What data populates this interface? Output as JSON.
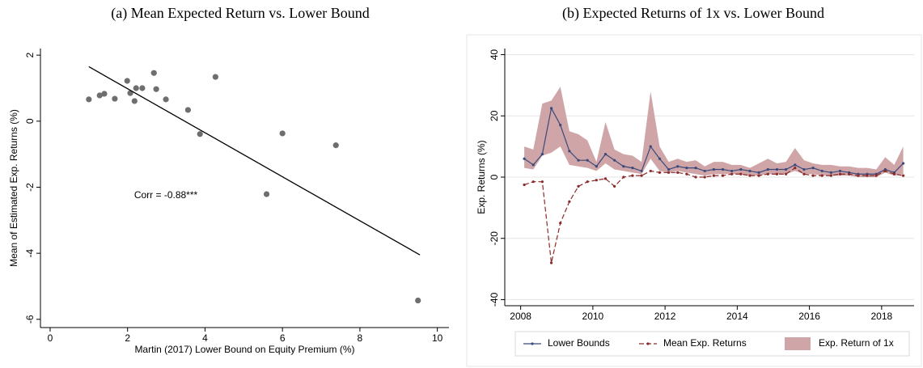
{
  "chart_data": [
    {
      "type": "scatter",
      "title": "(a) Mean Expected Return vs. Lower Bound",
      "x_label": "Martin (2017) Lower Bound on Equity Premium (%)",
      "y_label": "Mean of Estimated Exp. Returns (%)",
      "annotation": "Corr = -0.88***",
      "color": "#6e6e6e",
      "x": [
        1.0,
        1.28,
        1.4,
        1.67,
        1.99,
        2.07,
        2.18,
        2.22,
        2.38,
        2.68,
        2.74,
        2.99,
        3.56,
        3.87,
        4.27,
        5.59,
        6.0,
        7.38,
        9.5
      ],
      "y": [
        0.66,
        0.78,
        0.83,
        0.68,
        1.22,
        0.85,
        0.61,
        1.0,
        1.0,
        1.46,
        0.97,
        0.66,
        0.34,
        -0.39,
        1.34,
        -2.21,
        -0.37,
        -0.73,
        -5.43
      ],
      "fit_line": {
        "x": [
          1.0,
          9.55
        ],
        "y": [
          1.65,
          -4.05
        ]
      },
      "xlim": [
        -0.25,
        10.3
      ],
      "ylim": [
        -6.25,
        2.2
      ],
      "xticks": [
        0,
        2,
        4,
        6,
        8,
        10
      ],
      "yticks": [
        -6,
        -4,
        -2,
        0,
        2
      ],
      "grid": false
    },
    {
      "type": "line",
      "title": "(b) Expected Returns of 1x vs. Lower Bound",
      "y_label": "Exp. Returns (%)",
      "x": [
        2008.1,
        2008.35,
        2008.6,
        2008.85,
        2009.1,
        2009.35,
        2009.6,
        2009.85,
        2010.1,
        2010.35,
        2010.6,
        2010.85,
        2011.1,
        2011.35,
        2011.6,
        2011.85,
        2012.1,
        2012.35,
        2012.6,
        2012.85,
        2013.1,
        2013.35,
        2013.6,
        2013.85,
        2014.1,
        2014.35,
        2014.6,
        2014.85,
        2015.1,
        2015.35,
        2015.6,
        2015.85,
        2016.1,
        2016.35,
        2016.6,
        2016.85,
        2017.1,
        2017.35,
        2017.6,
        2017.85,
        2018.1,
        2018.35,
        2018.6
      ],
      "series": [
        {
          "name": "Exp. Return of 1x",
          "color": "#cfa5a8",
          "kind": "band",
          "low": [
            3,
            2.5,
            7,
            8,
            10,
            4,
            3.5,
            3,
            2,
            4.5,
            2.5,
            2,
            1.5,
            1,
            6,
            2,
            1.5,
            2,
            1.5,
            1,
            0.5,
            1,
            1,
            1,
            1,
            0.5,
            0.5,
            1,
            1,
            1,
            2,
            1,
            1,
            0.5,
            0.5,
            0.5,
            0.5,
            0,
            0,
            0,
            1.5,
            0.5,
            1
          ],
          "high": [
            10,
            9,
            24,
            25,
            29.5,
            15,
            14,
            12,
            5,
            18,
            9,
            7.5,
            7,
            5,
            28,
            10,
            5,
            6,
            5,
            5.5,
            3.5,
            5,
            5,
            4,
            4,
            3,
            4.5,
            6,
            4.5,
            5,
            9.5,
            5.5,
            4.5,
            4,
            4,
            3.5,
            3.5,
            3,
            3,
            2.5,
            6.5,
            4,
            10
          ]
        },
        {
          "name": "Lower Bounds",
          "color": "#3b4a7a",
          "style": "solid",
          "values": [
            6,
            4,
            7.5,
            22.5,
            17,
            8.5,
            5.5,
            5.5,
            3.5,
            7.5,
            5.5,
            3.5,
            3,
            2,
            10,
            6,
            2.5,
            3.5,
            3,
            3,
            2,
            2.5,
            2.5,
            2,
            2.5,
            2,
            1.5,
            2.5,
            2.5,
            2.5,
            4,
            2.5,
            3,
            2,
            1.5,
            2,
            1.5,
            1,
            1,
            1,
            2.5,
            1.5,
            4.5
          ]
        },
        {
          "name": "Mean Exp. Returns",
          "color": "#8b2a2a",
          "style": "dashed",
          "values": [
            -2.5,
            -1.5,
            -1.5,
            -28,
            -15,
            -8,
            -3,
            -1.5,
            -1,
            -0.5,
            -3,
            0,
            0.5,
            0.5,
            2,
            1.5,
            1.5,
            1.5,
            1,
            0,
            0,
            0.5,
            0.5,
            1,
            1,
            0.5,
            0.5,
            1,
            1,
            1,
            3,
            1,
            0.5,
            0.5,
            0.5,
            1,
            1,
            0.5,
            0.5,
            0.5,
            2,
            1,
            0.5
          ]
        }
      ],
      "xlim": [
        2007.56,
        2018.9
      ],
      "ylim": [
        -42,
        42
      ],
      "xticks": [
        2008,
        2010,
        2012,
        2014,
        2016,
        2018
      ],
      "yticks": [
        -40,
        -20,
        0,
        20,
        40
      ],
      "grid": true,
      "legend": "bottom"
    }
  ]
}
